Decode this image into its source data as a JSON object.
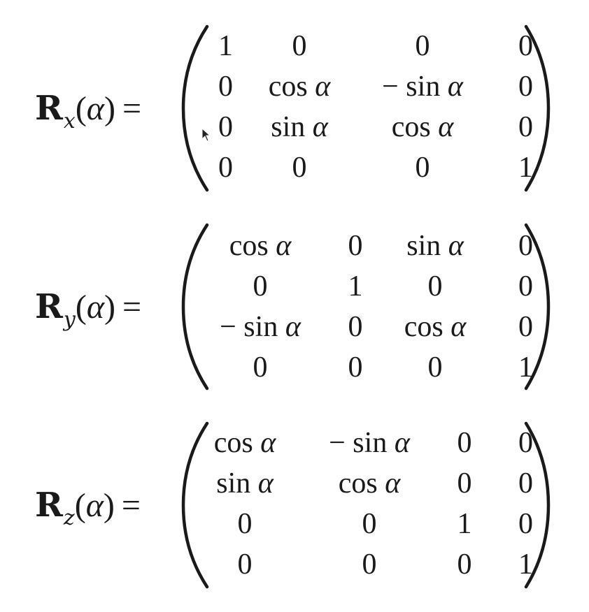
{
  "equations": [
    {
      "lhs": {
        "symbol": "R",
        "subscript": "x",
        "open": "(",
        "argument": "α",
        "close": ")",
        "equals": "="
      },
      "rows": [
        [
          "1",
          "0",
          "0",
          "0"
        ],
        [
          "0",
          "cos α",
          "− sin α",
          "0"
        ],
        [
          "0",
          "sin α",
          "cos α",
          "0"
        ],
        [
          "0",
          "0",
          "0",
          "1"
        ]
      ]
    },
    {
      "lhs": {
        "symbol": "R",
        "subscript": "y",
        "open": "(",
        "argument": "α",
        "close": ")",
        "equals": "="
      },
      "rows": [
        [
          "cos α",
          "0",
          "sin α",
          "0"
        ],
        [
          "0",
          "1",
          "0",
          "0"
        ],
        [
          "− sin α",
          "0",
          "cos α",
          "0"
        ],
        [
          "0",
          "0",
          "0",
          "1"
        ]
      ]
    },
    {
      "lhs": {
        "symbol": "R",
        "subscript": "z",
        "open": "(",
        "argument": "α",
        "close": ")",
        "equals": "="
      },
      "rows": [
        [
          "cos α",
          "− sin α",
          "0",
          "0"
        ],
        [
          "sin α",
          "cos α",
          "0",
          "0"
        ],
        [
          "0",
          "0",
          "1",
          "0"
        ],
        [
          "0",
          "0",
          "0",
          "1"
        ]
      ]
    }
  ],
  "icons": {
    "cursor": "mouse-pointer-icon"
  }
}
